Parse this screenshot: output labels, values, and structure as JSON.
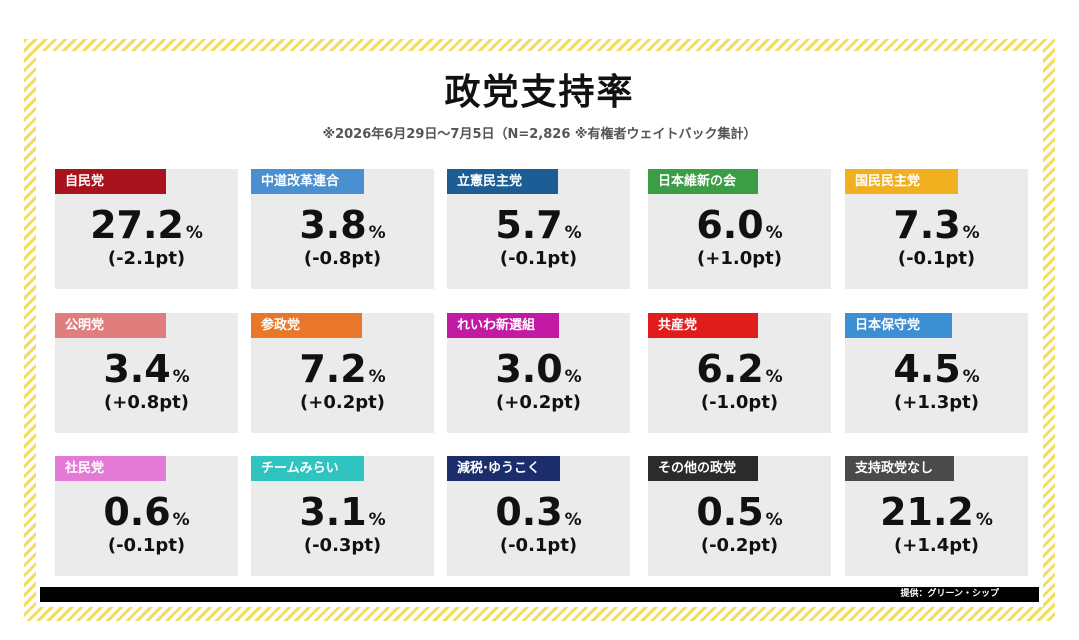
{
  "chart_data": {
    "type": "table",
    "title": "政党支持率",
    "subtitle": "※2026年6月29日〜7月5日（N=2,826 ※有権者ウェイトバック集計）",
    "unit": "%",
    "parties": [
      {
        "name": "自民党",
        "value": "27.2",
        "change": "(-2.1pt)",
        "color": "#a8121d"
      },
      {
        "name": "中道改革連合",
        "value": "3.8",
        "change": "(-0.8pt)",
        "color": "#4a8fd0"
      },
      {
        "name": "立憲民主党",
        "value": "5.7",
        "change": "(-0.1pt)",
        "color": "#1d5d95"
      },
      {
        "name": "日本維新の会",
        "value": "6.0",
        "change": "(+1.0pt)",
        "color": "#3b9e47"
      },
      {
        "name": "国民民主党",
        "value": "7.3",
        "change": "(-0.1pt)",
        "color": "#f0b020"
      },
      {
        "name": "公明党",
        "value": "3.4",
        "change": "(+0.8pt)",
        "color": "#e07e7e"
      },
      {
        "name": "参政党",
        "value": "7.2",
        "change": "(+0.2pt)",
        "color": "#e8772a"
      },
      {
        "name": "れいわ新選組",
        "value": "3.0",
        "change": "(+0.2pt)",
        "color": "#c21aa3"
      },
      {
        "name": "共産党",
        "value": "6.2",
        "change": "(-1.0pt)",
        "color": "#e11c1c"
      },
      {
        "name": "日本保守党",
        "value": "4.5",
        "change": "(+1.3pt)",
        "color": "#3d8fd4"
      },
      {
        "name": "社民党",
        "value": "0.6",
        "change": "(-0.1pt)",
        "color": "#e37ad6"
      },
      {
        "name": "チームみらい",
        "value": "3.1",
        "change": "(-0.3pt)",
        "color": "#2fc4bf"
      },
      {
        "name": "減税·ゆうこく",
        "value": "0.3",
        "change": "(-0.1pt)",
        "color": "#1b2e6b"
      },
      {
        "name": "その他の政党",
        "value": "0.5",
        "change": "(-0.2pt)",
        "color": "#2b2b2b"
      },
      {
        "name": "支持政党なし",
        "value": "21.2",
        "change": "(+1.4pt)",
        "color": "#4a4a4a"
      }
    ]
  },
  "footer": {
    "credit": "提供：グリーン・シップ"
  }
}
